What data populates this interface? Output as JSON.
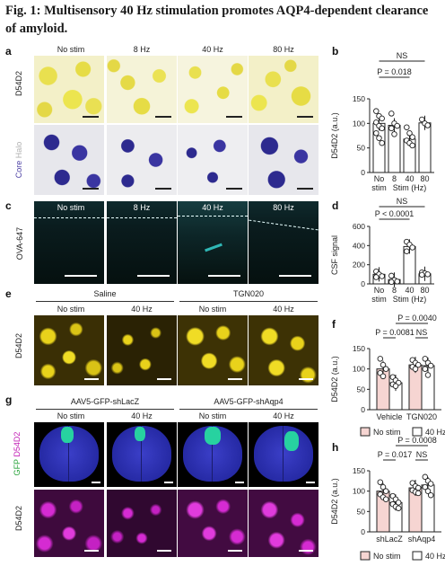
{
  "figure": {
    "title": "Fig. 1: Multisensory 40  Hz stimulation promotes AQP4-dependent clearance of amyloid."
  },
  "panels": {
    "a": {
      "label": "a",
      "columns": [
        "No stim",
        "8 Hz",
        "40 Hz",
        "80 Hz"
      ],
      "row_labels": [
        "D54D2",
        "Core",
        "Halo"
      ]
    },
    "c": {
      "label": "c",
      "columns": [
        "No stim",
        "8 Hz",
        "40 Hz",
        "80 Hz"
      ],
      "row_label": "OVA-647"
    },
    "e": {
      "label": "e",
      "groups": [
        "Saline",
        "TGN020"
      ],
      "columns": [
        "No stim",
        "40 Hz",
        "No stim",
        "40 Hz"
      ],
      "row_label": "D54D2"
    },
    "g": {
      "label": "g",
      "groups": [
        "AAV5-GFP-shLacZ",
        "AAV5-GFP-shAqp4"
      ],
      "columns": [
        "No stim",
        "40 Hz",
        "No stim",
        "40 Hz"
      ],
      "row_labels": [
        "GFP",
        "D54D2",
        "D54D2"
      ]
    }
  },
  "chart_data": [
    {
      "panel": "b",
      "type": "bar",
      "categories": [
        "No stim",
        "8",
        "40",
        "80"
      ],
      "xlabel": "Stim (Hz)",
      "ylabel": "D54D2 (a.u.)",
      "ylim": [
        0,
        150
      ],
      "yticks": [
        "0",
        "50",
        "100",
        "150"
      ],
      "values": [
        100,
        96,
        68,
        101
      ],
      "points": [
        [
          125,
          115,
          110,
          102,
          95,
          90,
          80,
          70,
          60
        ],
        [
          120,
          100,
          95,
          90,
          78
        ],
        [
          92,
          80,
          72,
          65,
          60,
          55
        ],
        [
          108,
          100,
          96
        ]
      ],
      "annotations": [
        "NS",
        "P = 0.018"
      ]
    },
    {
      "panel": "d",
      "type": "bar",
      "categories": [
        "No stim",
        "8",
        "40",
        "80"
      ],
      "xlabel": "Stim (Hz)",
      "ylabel": "CSF signal",
      "ylim": [
        0,
        600
      ],
      "yticks": [
        "0",
        "200",
        "400",
        "600"
      ],
      "values": [
        100,
        45,
        390,
        105
      ],
      "points": [
        [
          130,
          100,
          80,
          70
        ],
        [
          85,
          40,
          25,
          20
        ],
        [
          440,
          410,
          380,
          340
        ],
        [
          120,
          110,
          100,
          95
        ]
      ],
      "annotations": [
        "NS",
        "P < 0.0001"
      ]
    },
    {
      "panel": "f",
      "type": "bar",
      "categories": [
        "Vehicle",
        "TGN020"
      ],
      "ylabel": "D54D2 (a.u.)",
      "ylim": [
        0,
        150
      ],
      "yticks": [
        "0",
        "50",
        "100",
        "150"
      ],
      "series": [
        {
          "name": "No stim",
          "values": [
            100,
            110
          ],
          "color": "#f6d5d2",
          "points": [
            [
              125,
              110,
              100,
              90,
              82
            ],
            [
              122,
              115,
              110,
              105,
              100
            ]
          ]
        },
        {
          "name": "40 Hz",
          "values": [
            66,
            108
          ],
          "color": "#ffffff",
          "points": [
            [
              80,
              72,
              66,
              62,
              58
            ],
            [
              125,
              115,
              108,
              100,
              85
            ]
          ]
        }
      ],
      "annotations": [
        "P = 0.0040",
        "P = 0.0081",
        "NS"
      ],
      "legend": [
        "No stim",
        "40 Hz"
      ]
    },
    {
      "panel": "h",
      "type": "bar",
      "categories": [
        "shLacZ",
        "shAqp4"
      ],
      "ylabel": "D54D2 (a.u.)",
      "ylim": [
        0,
        150
      ],
      "yticks": [
        "0",
        "50",
        "100",
        "150"
      ],
      "series": [
        {
          "name": "No stim",
          "values": [
            100,
            108
          ],
          "color": "#f6d5d2",
          "points": [
            [
              122,
              110,
              100,
              92,
              85,
              80
            ],
            [
              120,
              112,
              108,
              102,
              98,
              95
            ]
          ]
        },
        {
          "name": "40 Hz",
          "values": [
            72,
            115
          ],
          "color": "#ffffff",
          "points": [
            [
              88,
              80,
              72,
              68,
              62,
              58
            ],
            [
              135,
              125,
              118,
              110,
              100,
              90
            ]
          ]
        }
      ],
      "annotations": [
        "P = 0.0008",
        "P = 0.017",
        "NS"
      ],
      "legend": [
        "No stim",
        "40 Hz"
      ]
    }
  ]
}
